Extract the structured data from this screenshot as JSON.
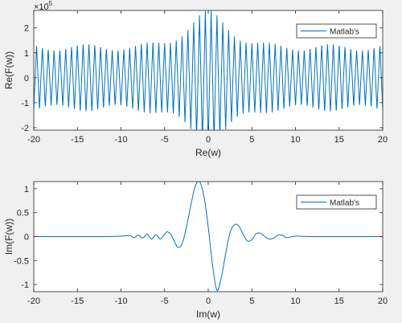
{
  "colors": {
    "figure_bg": "#f0f0f0",
    "axes_bg": "#ffffff",
    "axis": "#262626",
    "series": "#0072bd",
    "legend_border": "#262626"
  },
  "chart_data": [
    {
      "type": "line",
      "xlabel": "Re(w)",
      "ylabel": "Re(F(w))",
      "exponent_label": "×10",
      "exponent_power": "-5",
      "xlim": [
        -20,
        20
      ],
      "ylim": [
        -2.1,
        2.7
      ],
      "xticks": [
        -20,
        -15,
        -10,
        -5,
        0,
        5,
        10,
        15,
        20
      ],
      "xtick_labels": [
        "-20",
        "-15",
        "-10",
        "-5",
        "0",
        "5",
        "10",
        "15",
        "20"
      ],
      "yticks": [
        -2,
        -1,
        0,
        1,
        2
      ],
      "ytick_labels": [
        "-2",
        "-1",
        "0",
        "1",
        "2"
      ],
      "legend_placement": "top-right",
      "series": [
        {
          "name": "Matlab's",
          "style": "oscillation",
          "period": 0.667,
          "center_amplitude": 2.7,
          "base_amplitude": 1.4,
          "center_width": 2.6
        }
      ]
    },
    {
      "type": "line",
      "xlabel": "Im(w)",
      "ylabel": "Im(F(w))",
      "xlim": [
        -20,
        20
      ],
      "ylim": [
        -1.15,
        1.15
      ],
      "xticks": [
        -20,
        -15,
        -10,
        -5,
        0,
        5,
        10,
        15,
        20
      ],
      "xtick_labels": [
        "-20",
        "-15",
        "-10",
        "-5",
        "0",
        "5",
        "10",
        "15",
        "20"
      ],
      "yticks": [
        -1,
        -0.5,
        0,
        0.5,
        1
      ],
      "ytick_labels": [
        "-1",
        "-0.5",
        "0",
        "0.5",
        "1"
      ],
      "legend_placement": "top-right",
      "series": [
        {
          "name": "Matlab's",
          "style": "damped-wave",
          "x": [
            -20,
            -12,
            -10,
            -9,
            -8.5,
            -8,
            -7.5,
            -7,
            -6.5,
            -6,
            -5.5,
            -5,
            -4.7,
            -4.3,
            -4,
            -3.5,
            -3,
            -2.5,
            -2,
            -1.5,
            -1,
            -0.5,
            0,
            0.5,
            1,
            1.5,
            2,
            2.5,
            3,
            3.5,
            4,
            4.5,
            5,
            5.5,
            6,
            6.5,
            7,
            7.5,
            8,
            8.5,
            9,
            10,
            12,
            20
          ],
          "y": [
            0,
            0,
            0.01,
            0.02,
            -0.02,
            0.03,
            -0.03,
            0.05,
            -0.05,
            0.04,
            -0.05,
            0.05,
            0.1,
            0.05,
            -0.05,
            -0.22,
            -0.15,
            0.2,
            0.65,
            1.05,
            1.15,
            0.85,
            0.2,
            -0.6,
            -1.12,
            -0.85,
            -0.35,
            0.08,
            0.25,
            0.22,
            0.05,
            -0.09,
            -0.06,
            0.06,
            0.07,
            0.0,
            -0.05,
            -0.03,
            0.03,
            0.03,
            -0.02,
            0.01,
            0,
            0
          ]
        }
      ]
    }
  ]
}
